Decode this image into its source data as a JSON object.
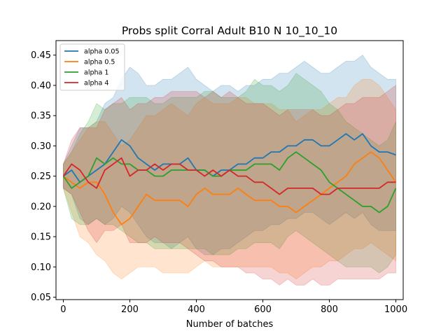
{
  "chart_data": {
    "type": "line",
    "title": "Probs split Corral Adult B10 N 10_10_10",
    "xlabel": "Number of batches",
    "ylabel": "",
    "xlim": [
      -22,
      1022
    ],
    "ylim": [
      0.046,
      0.474
    ],
    "x_ticks": [
      0,
      200,
      400,
      600,
      800,
      1000
    ],
    "y_ticks": [
      0.05,
      0.1,
      0.15,
      0.2,
      0.25,
      0.3,
      0.35,
      0.4,
      0.45
    ],
    "legend_position": "upper-left",
    "grid": false,
    "shaded_band_alpha": 0.2,
    "x": [
      0,
      25,
      50,
      75,
      100,
      125,
      150,
      175,
      200,
      225,
      250,
      275,
      300,
      325,
      350,
      375,
      400,
      425,
      450,
      475,
      500,
      525,
      550,
      575,
      600,
      625,
      650,
      675,
      700,
      725,
      750,
      775,
      800,
      825,
      850,
      875,
      900,
      925,
      950,
      975,
      1000
    ],
    "series": [
      {
        "name": "alpha 0.05",
        "color": "#1f77b4",
        "values": [
          0.25,
          0.26,
          0.24,
          0.25,
          0.26,
          0.27,
          0.29,
          0.31,
          0.3,
          0.28,
          0.27,
          0.26,
          0.27,
          0.27,
          0.27,
          0.28,
          0.26,
          0.26,
          0.25,
          0.26,
          0.26,
          0.27,
          0.27,
          0.28,
          0.28,
          0.29,
          0.29,
          0.3,
          0.3,
          0.31,
          0.31,
          0.3,
          0.3,
          0.31,
          0.32,
          0.31,
          0.32,
          0.3,
          0.29,
          0.29,
          0.285
        ],
        "upper": [
          0.27,
          0.3,
          0.33,
          0.33,
          0.34,
          0.37,
          0.38,
          0.41,
          0.43,
          0.42,
          0.4,
          0.4,
          0.41,
          0.41,
          0.42,
          0.43,
          0.41,
          0.4,
          0.39,
          0.4,
          0.4,
          0.39,
          0.4,
          0.4,
          0.41,
          0.41,
          0.42,
          0.42,
          0.43,
          0.44,
          0.43,
          0.42,
          0.42,
          0.43,
          0.44,
          0.44,
          0.45,
          0.43,
          0.42,
          0.41,
          0.41
        ],
        "lower": [
          0.23,
          0.22,
          0.18,
          0.17,
          0.18,
          0.17,
          0.18,
          0.2,
          0.19,
          0.17,
          0.15,
          0.14,
          0.14,
          0.13,
          0.14,
          0.15,
          0.13,
          0.12,
          0.12,
          0.13,
          0.13,
          0.14,
          0.15,
          0.16,
          0.16,
          0.17,
          0.17,
          0.18,
          0.18,
          0.19,
          0.19,
          0.18,
          0.17,
          0.18,
          0.19,
          0.18,
          0.19,
          0.17,
          0.16,
          0.16,
          0.16
        ]
      },
      {
        "name": "alpha 0.5",
        "color": "#ff7f0e",
        "values": [
          0.25,
          0.24,
          0.23,
          0.24,
          0.24,
          0.22,
          0.19,
          0.17,
          0.18,
          0.2,
          0.22,
          0.21,
          0.21,
          0.21,
          0.21,
          0.2,
          0.22,
          0.23,
          0.22,
          0.22,
          0.22,
          0.23,
          0.22,
          0.21,
          0.21,
          0.21,
          0.2,
          0.2,
          0.19,
          0.2,
          0.21,
          0.22,
          0.23,
          0.24,
          0.25,
          0.27,
          0.28,
          0.29,
          0.28,
          0.26,
          0.24
        ],
        "upper": [
          0.27,
          0.29,
          0.31,
          0.33,
          0.34,
          0.34,
          0.32,
          0.3,
          0.31,
          0.33,
          0.35,
          0.35,
          0.36,
          0.37,
          0.36,
          0.35,
          0.37,
          0.38,
          0.37,
          0.37,
          0.37,
          0.38,
          0.38,
          0.37,
          0.37,
          0.37,
          0.36,
          0.36,
          0.34,
          0.35,
          0.36,
          0.36,
          0.37,
          0.38,
          0.38,
          0.4,
          0.41,
          0.41,
          0.4,
          0.38,
          0.36
        ],
        "lower": [
          0.23,
          0.19,
          0.15,
          0.14,
          0.12,
          0.11,
          0.09,
          0.08,
          0.09,
          0.1,
          0.1,
          0.1,
          0.09,
          0.09,
          0.09,
          0.09,
          0.1,
          0.11,
          0.1,
          0.1,
          0.1,
          0.1,
          0.1,
          0.1,
          0.1,
          0.1,
          0.09,
          0.09,
          0.08,
          0.09,
          0.1,
          0.1,
          0.11,
          0.11,
          0.12,
          0.13,
          0.13,
          0.14,
          0.13,
          0.12,
          0.11
        ]
      },
      {
        "name": "alpha 1",
        "color": "#2ca02c",
        "values": [
          0.25,
          0.23,
          0.24,
          0.25,
          0.28,
          0.27,
          0.28,
          0.27,
          0.27,
          0.26,
          0.26,
          0.25,
          0.25,
          0.26,
          0.26,
          0.26,
          0.26,
          0.26,
          0.25,
          0.25,
          0.26,
          0.26,
          0.26,
          0.27,
          0.27,
          0.27,
          0.26,
          0.28,
          0.29,
          0.28,
          0.27,
          0.26,
          0.24,
          0.23,
          0.22,
          0.21,
          0.2,
          0.2,
          0.19,
          0.2,
          0.23
        ],
        "upper": [
          0.27,
          0.29,
          0.32,
          0.34,
          0.37,
          0.36,
          0.37,
          0.37,
          0.38,
          0.38,
          0.38,
          0.37,
          0.37,
          0.38,
          0.38,
          0.38,
          0.38,
          0.39,
          0.39,
          0.38,
          0.38,
          0.38,
          0.39,
          0.41,
          0.4,
          0.4,
          0.39,
          0.4,
          0.42,
          0.41,
          0.4,
          0.39,
          0.37,
          0.36,
          0.34,
          0.33,
          0.32,
          0.31,
          0.3,
          0.31,
          0.34
        ],
        "lower": [
          0.23,
          0.18,
          0.17,
          0.17,
          0.18,
          0.17,
          0.17,
          0.16,
          0.15,
          0.14,
          0.14,
          0.13,
          0.13,
          0.13,
          0.13,
          0.13,
          0.13,
          0.13,
          0.12,
          0.12,
          0.12,
          0.13,
          0.13,
          0.14,
          0.14,
          0.14,
          0.13,
          0.15,
          0.16,
          0.15,
          0.14,
          0.13,
          0.12,
          0.11,
          0.1,
          0.1,
          0.1,
          0.1,
          0.09,
          0.1,
          0.12
        ]
      },
      {
        "name": "alpha 4",
        "color": "#d62728",
        "values": [
          0.25,
          0.27,
          0.26,
          0.24,
          0.23,
          0.26,
          0.27,
          0.28,
          0.25,
          0.26,
          0.26,
          0.27,
          0.26,
          0.27,
          0.27,
          0.26,
          0.26,
          0.25,
          0.26,
          0.25,
          0.26,
          0.25,
          0.25,
          0.24,
          0.24,
          0.23,
          0.22,
          0.23,
          0.23,
          0.23,
          0.23,
          0.22,
          0.22,
          0.23,
          0.23,
          0.23,
          0.23,
          0.23,
          0.23,
          0.24,
          0.24
        ],
        "upper": [
          0.27,
          0.31,
          0.33,
          0.33,
          0.33,
          0.36,
          0.37,
          0.38,
          0.36,
          0.37,
          0.37,
          0.38,
          0.38,
          0.39,
          0.39,
          0.39,
          0.39,
          0.38,
          0.39,
          0.38,
          0.39,
          0.38,
          0.37,
          0.37,
          0.37,
          0.36,
          0.35,
          0.36,
          0.36,
          0.36,
          0.36,
          0.35,
          0.35,
          0.36,
          0.37,
          0.37,
          0.38,
          0.38,
          0.38,
          0.39,
          0.4
        ],
        "lower": [
          0.23,
          0.22,
          0.19,
          0.16,
          0.14,
          0.16,
          0.16,
          0.17,
          0.14,
          0.14,
          0.14,
          0.15,
          0.14,
          0.14,
          0.14,
          0.13,
          0.12,
          0.11,
          0.11,
          0.1,
          0.1,
          0.1,
          0.09,
          0.09,
          0.08,
          0.08,
          0.07,
          0.08,
          0.07,
          0.07,
          0.08,
          0.07,
          0.07,
          0.08,
          0.08,
          0.08,
          0.08,
          0.08,
          0.08,
          0.09,
          0.09
        ]
      }
    ]
  }
}
